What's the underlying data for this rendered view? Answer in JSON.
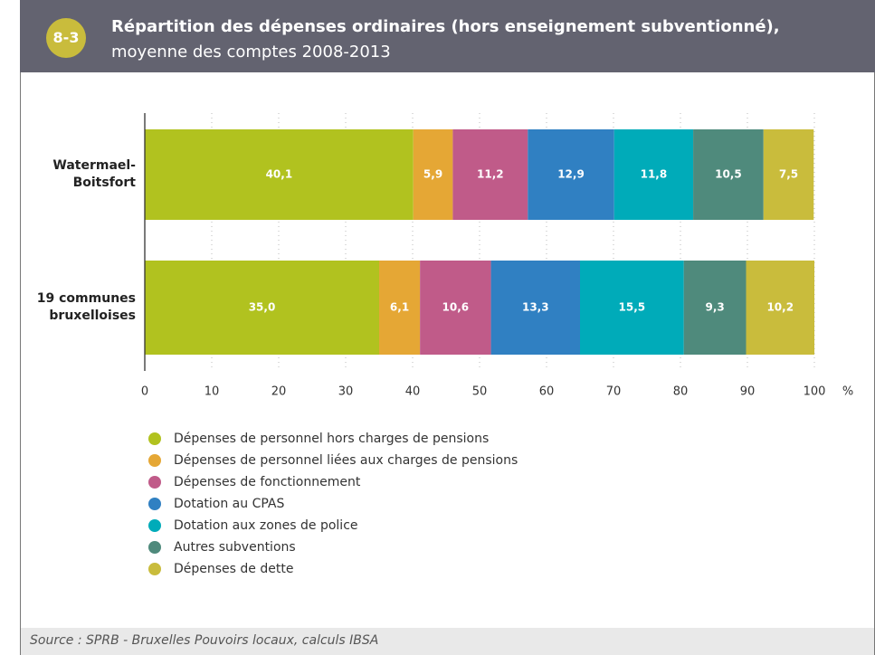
{
  "badge": "8-3",
  "chart_data": {
    "type": "stacked_barh",
    "title": "Répartition des dépenses ordinaires (hors enseignement subventionné),",
    "subtitle": "moyenne des comptes 2008-2013",
    "categories": [
      "Watermael-Boitsfort",
      "19 communes bruxelloises"
    ],
    "series": [
      {
        "name": "Dépenses de personnel hors charges de pensions",
        "color": "#b1c21f",
        "values": [
          40.1,
          35.0
        ],
        "value_labels": [
          "40,1",
          "35,0"
        ]
      },
      {
        "name": "Dépenses de personnel liées aux charges de pensions",
        "color": "#e5a735",
        "values": [
          5.9,
          6.1
        ],
        "value_labels": [
          "5,9",
          "6,1"
        ]
      },
      {
        "name": "Dépenses de fonctionnement",
        "color": "#c05b89",
        "values": [
          11.2,
          10.6
        ],
        "value_labels": [
          "11,2",
          "10,6"
        ]
      },
      {
        "name": "Dotation au CPAS",
        "color": "#3080c2",
        "values": [
          12.9,
          13.3
        ],
        "value_labels": [
          "12,9",
          "13,3"
        ]
      },
      {
        "name": "Dotation aux zones de police",
        "color": "#00abb9",
        "values": [
          11.8,
          15.5
        ],
        "value_labels": [
          "11,8",
          "15,5"
        ]
      },
      {
        "name": "Autres subventions",
        "color": "#4f8a7c",
        "values": [
          10.5,
          9.3
        ],
        "value_labels": [
          "10,5",
          "9,3"
        ]
      },
      {
        "name": "Dépenses de dette",
        "color": "#c9bc3c",
        "values": [
          7.5,
          10.2
        ],
        "value_labels": [
          "7,5",
          "10,2"
        ]
      }
    ],
    "xlim": [
      0,
      100
    ],
    "xticks": [
      0,
      10,
      20,
      30,
      40,
      50,
      60,
      70,
      80,
      90,
      100
    ],
    "x_unit": "%",
    "grid": true,
    "source": "Source : SPRB - Bruxelles Pouvoirs locaux, calculs IBSA"
  }
}
